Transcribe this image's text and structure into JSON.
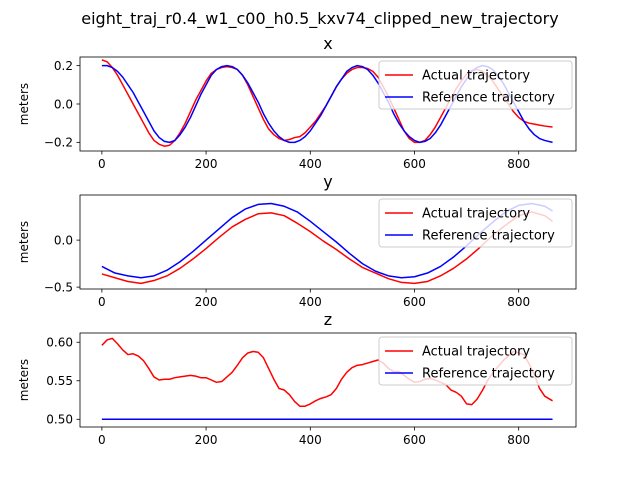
{
  "figure": {
    "suptitle": "eight_traj_r0.4_w1_c00_h0.5_kxv74_clipped_new_trajectory"
  },
  "colors": {
    "actual": "#ff0000",
    "reference": "#0000ff"
  },
  "chart_data": [
    {
      "type": "line",
      "title": "x",
      "xlabel": "",
      "ylabel": "meters",
      "xlim": [
        -42,
        910
      ],
      "ylim": [
        -0.245,
        0.245
      ],
      "xticks": [
        0,
        200,
        400,
        600,
        800
      ],
      "xtick_labels": [
        "0",
        "200",
        "400",
        "600",
        "800"
      ],
      "yticks": [
        -0.2,
        0.0,
        0.2
      ],
      "ytick_labels": [
        "−0.2",
        "0.0",
        "0.2"
      ],
      "legend": {
        "entries": [
          "Actual trajectory",
          "Reference trajectory"
        ],
        "placement": "upper right"
      },
      "series": [
        {
          "name": "Actual trajectory",
          "color": "#ff0000",
          "x": [
            0,
            10,
            20,
            30,
            40,
            50,
            60,
            70,
            80,
            90,
            100,
            110,
            120,
            130,
            140,
            150,
            160,
            170,
            180,
            190,
            200,
            210,
            220,
            230,
            240,
            250,
            260,
            270,
            280,
            290,
            300,
            310,
            320,
            330,
            340,
            350,
            360,
            370,
            380,
            390,
            400,
            410,
            420,
            430,
            440,
            450,
            460,
            470,
            480,
            490,
            500,
            510,
            520,
            530,
            540,
            550,
            560,
            570,
            580,
            590,
            600,
            610,
            620,
            630,
            640,
            650,
            660,
            670,
            680,
            690,
            700,
            710,
            720,
            730,
            740,
            750,
            760,
            770,
            780,
            790,
            800,
            810,
            820,
            830,
            840,
            850,
            865
          ],
          "values": [
            0.23,
            0.22,
            0.19,
            0.15,
            0.1,
            0.05,
            0.0,
            -0.05,
            -0.1,
            -0.15,
            -0.19,
            -0.21,
            -0.22,
            -0.215,
            -0.19,
            -0.15,
            -0.1,
            -0.04,
            0.02,
            0.07,
            0.12,
            0.16,
            0.18,
            0.19,
            0.195,
            0.19,
            0.18,
            0.15,
            0.1,
            0.04,
            -0.02,
            -0.08,
            -0.13,
            -0.16,
            -0.18,
            -0.19,
            -0.185,
            -0.175,
            -0.17,
            -0.15,
            -0.12,
            -0.09,
            -0.05,
            -0.01,
            0.04,
            0.09,
            0.13,
            0.16,
            0.18,
            0.19,
            0.19,
            0.185,
            0.17,
            0.14,
            0.09,
            0.04,
            -0.02,
            -0.08,
            -0.14,
            -0.18,
            -0.2,
            -0.2,
            -0.19,
            -0.16,
            -0.12,
            -0.07,
            -0.02,
            0.03,
            0.08,
            0.12,
            0.155,
            0.175,
            0.18,
            0.17,
            0.15,
            0.12,
            0.08,
            0.04,
            0.0,
            -0.04,
            -0.07,
            -0.09,
            -0.1,
            -0.105,
            -0.11,
            -0.115,
            -0.12
          ]
        },
        {
          "name": "Reference trajectory",
          "color": "#0000ff",
          "x": [
            0,
            10,
            20,
            30,
            40,
            50,
            60,
            70,
            80,
            90,
            100,
            110,
            120,
            130,
            140,
            150,
            160,
            170,
            180,
            190,
            200,
            210,
            220,
            230,
            240,
            250,
            260,
            270,
            280,
            290,
            300,
            310,
            320,
            330,
            340,
            350,
            360,
            370,
            380,
            390,
            400,
            410,
            420,
            430,
            440,
            450,
            460,
            470,
            480,
            490,
            500,
            510,
            520,
            530,
            540,
            550,
            560,
            570,
            580,
            590,
            600,
            610,
            620,
            630,
            640,
            650,
            660,
            670,
            680,
            690,
            700,
            710,
            720,
            730,
            740,
            750,
            760,
            770,
            780,
            790,
            800,
            810,
            820,
            830,
            840,
            850,
            865
          ],
          "values": [
            0.2,
            0.2,
            0.19,
            0.17,
            0.14,
            0.1,
            0.06,
            0.01,
            -0.04,
            -0.09,
            -0.14,
            -0.175,
            -0.195,
            -0.2,
            -0.19,
            -0.16,
            -0.12,
            -0.07,
            -0.01,
            0.05,
            0.1,
            0.15,
            0.18,
            0.195,
            0.2,
            0.195,
            0.18,
            0.15,
            0.11,
            0.06,
            0.01,
            -0.05,
            -0.1,
            -0.14,
            -0.17,
            -0.19,
            -0.2,
            -0.2,
            -0.19,
            -0.17,
            -0.14,
            -0.1,
            -0.06,
            -0.01,
            0.04,
            0.09,
            0.13,
            0.17,
            0.19,
            0.2,
            0.195,
            0.18,
            0.15,
            0.11,
            0.06,
            0.01,
            -0.05,
            -0.1,
            -0.14,
            -0.17,
            -0.19,
            -0.2,
            -0.195,
            -0.18,
            -0.15,
            -0.11,
            -0.06,
            -0.01,
            0.04,
            0.09,
            0.13,
            0.17,
            0.19,
            0.2,
            0.195,
            0.18,
            0.15,
            0.11,
            0.06,
            0.01,
            -0.04,
            -0.09,
            -0.13,
            -0.16,
            -0.18,
            -0.19,
            -0.2
          ]
        }
      ]
    },
    {
      "type": "line",
      "title": "y",
      "xlabel": "",
      "ylabel": "meters",
      "xlim": [
        -42,
        910
      ],
      "ylim": [
        -0.52,
        0.48
      ],
      "xticks": [
        0,
        200,
        400,
        600,
        800
      ],
      "xtick_labels": [
        "0",
        "200",
        "400",
        "600",
        "800"
      ],
      "yticks": [
        -0.5,
        0.0
      ],
      "ytick_labels": [
        "−0.5",
        "0.0"
      ],
      "legend": {
        "entries": [
          "Actual trajectory",
          "Reference trajectory"
        ],
        "placement": "upper right"
      },
      "series": [
        {
          "name": "Actual trajectory",
          "color": "#ff0000",
          "x": [
            0,
            25,
            50,
            75,
            100,
            125,
            150,
            175,
            200,
            225,
            250,
            275,
            300,
            325,
            350,
            375,
            400,
            425,
            450,
            475,
            500,
            525,
            550,
            575,
            600,
            625,
            650,
            675,
            700,
            725,
            750,
            775,
            800,
            825,
            850,
            865
          ],
          "values": [
            -0.36,
            -0.4,
            -0.44,
            -0.46,
            -0.43,
            -0.38,
            -0.3,
            -0.2,
            -0.09,
            0.03,
            0.14,
            0.22,
            0.28,
            0.29,
            0.26,
            0.18,
            0.09,
            -0.01,
            -0.1,
            -0.2,
            -0.29,
            -0.35,
            -0.41,
            -0.45,
            -0.46,
            -0.44,
            -0.38,
            -0.3,
            -0.2,
            -0.08,
            0.05,
            0.16,
            0.26,
            0.3,
            0.26,
            0.2
          ]
        },
        {
          "name": "Reference trajectory",
          "color": "#0000ff",
          "x": [
            0,
            25,
            50,
            75,
            100,
            125,
            150,
            175,
            200,
            225,
            250,
            275,
            300,
            325,
            350,
            375,
            400,
            425,
            450,
            475,
            500,
            525,
            550,
            575,
            600,
            625,
            650,
            675,
            700,
            725,
            750,
            775,
            800,
            825,
            850,
            865
          ],
          "values": [
            -0.28,
            -0.35,
            -0.38,
            -0.4,
            -0.38,
            -0.32,
            -0.23,
            -0.12,
            0.0,
            0.12,
            0.24,
            0.33,
            0.38,
            0.39,
            0.36,
            0.3,
            0.2,
            0.09,
            -0.02,
            -0.14,
            -0.25,
            -0.33,
            -0.38,
            -0.4,
            -0.39,
            -0.35,
            -0.28,
            -0.18,
            -0.06,
            0.07,
            0.19,
            0.3,
            0.37,
            0.39,
            0.36,
            0.31
          ]
        }
      ]
    },
    {
      "type": "line",
      "title": "z",
      "xlabel": "",
      "ylabel": "meters",
      "xlim": [
        -42,
        910
      ],
      "ylim": [
        0.49,
        0.612
      ],
      "xticks": [
        0,
        200,
        400,
        600,
        800
      ],
      "xtick_labels": [
        "0",
        "200",
        "400",
        "600",
        "800"
      ],
      "yticks": [
        0.5,
        0.55,
        0.6
      ],
      "ytick_labels": [
        "0.50",
        "0.55",
        "0.60"
      ],
      "legend": {
        "entries": [
          "Actual trajectory",
          "Reference trajectory"
        ],
        "placement": "upper right"
      },
      "series": [
        {
          "name": "Actual trajectory",
          "color": "#ff0000",
          "x": [
            0,
            10,
            20,
            30,
            40,
            50,
            60,
            70,
            80,
            90,
            100,
            110,
            120,
            130,
            140,
            150,
            160,
            170,
            180,
            190,
            200,
            210,
            220,
            230,
            240,
            250,
            260,
            270,
            280,
            290,
            300,
            310,
            320,
            330,
            340,
            350,
            360,
            370,
            380,
            390,
            400,
            410,
            420,
            430,
            440,
            450,
            460,
            470,
            480,
            490,
            500,
            510,
            520,
            530,
            540,
            550,
            560,
            570,
            580,
            590,
            600,
            610,
            620,
            630,
            640,
            650,
            660,
            670,
            680,
            690,
            700,
            710,
            720,
            730,
            740,
            750,
            760,
            770,
            780,
            790,
            800,
            810,
            820,
            830,
            840,
            850,
            865
          ],
          "values": [
            0.596,
            0.603,
            0.605,
            0.598,
            0.59,
            0.584,
            0.585,
            0.582,
            0.576,
            0.566,
            0.555,
            0.551,
            0.552,
            0.552,
            0.554,
            0.555,
            0.556,
            0.557,
            0.556,
            0.554,
            0.554,
            0.551,
            0.548,
            0.549,
            0.555,
            0.561,
            0.57,
            0.58,
            0.586,
            0.588,
            0.587,
            0.58,
            0.566,
            0.552,
            0.54,
            0.538,
            0.532,
            0.523,
            0.517,
            0.517,
            0.52,
            0.524,
            0.527,
            0.529,
            0.532,
            0.54,
            0.552,
            0.561,
            0.567,
            0.57,
            0.571,
            0.573,
            0.575,
            0.577,
            0.573,
            0.566,
            0.562,
            0.562,
            0.557,
            0.552,
            0.548,
            0.549,
            0.552,
            0.553,
            0.551,
            0.548,
            0.545,
            0.538,
            0.535,
            0.53,
            0.52,
            0.519,
            0.526,
            0.537,
            0.55,
            0.56,
            0.568,
            0.576,
            0.582,
            0.588,
            0.586,
            0.584,
            0.572,
            0.558,
            0.54,
            0.53,
            0.524
          ]
        },
        {
          "name": "Reference trajectory",
          "color": "#0000ff",
          "x": [
            0,
            865
          ],
          "values": [
            0.5,
            0.5
          ]
        }
      ]
    }
  ]
}
